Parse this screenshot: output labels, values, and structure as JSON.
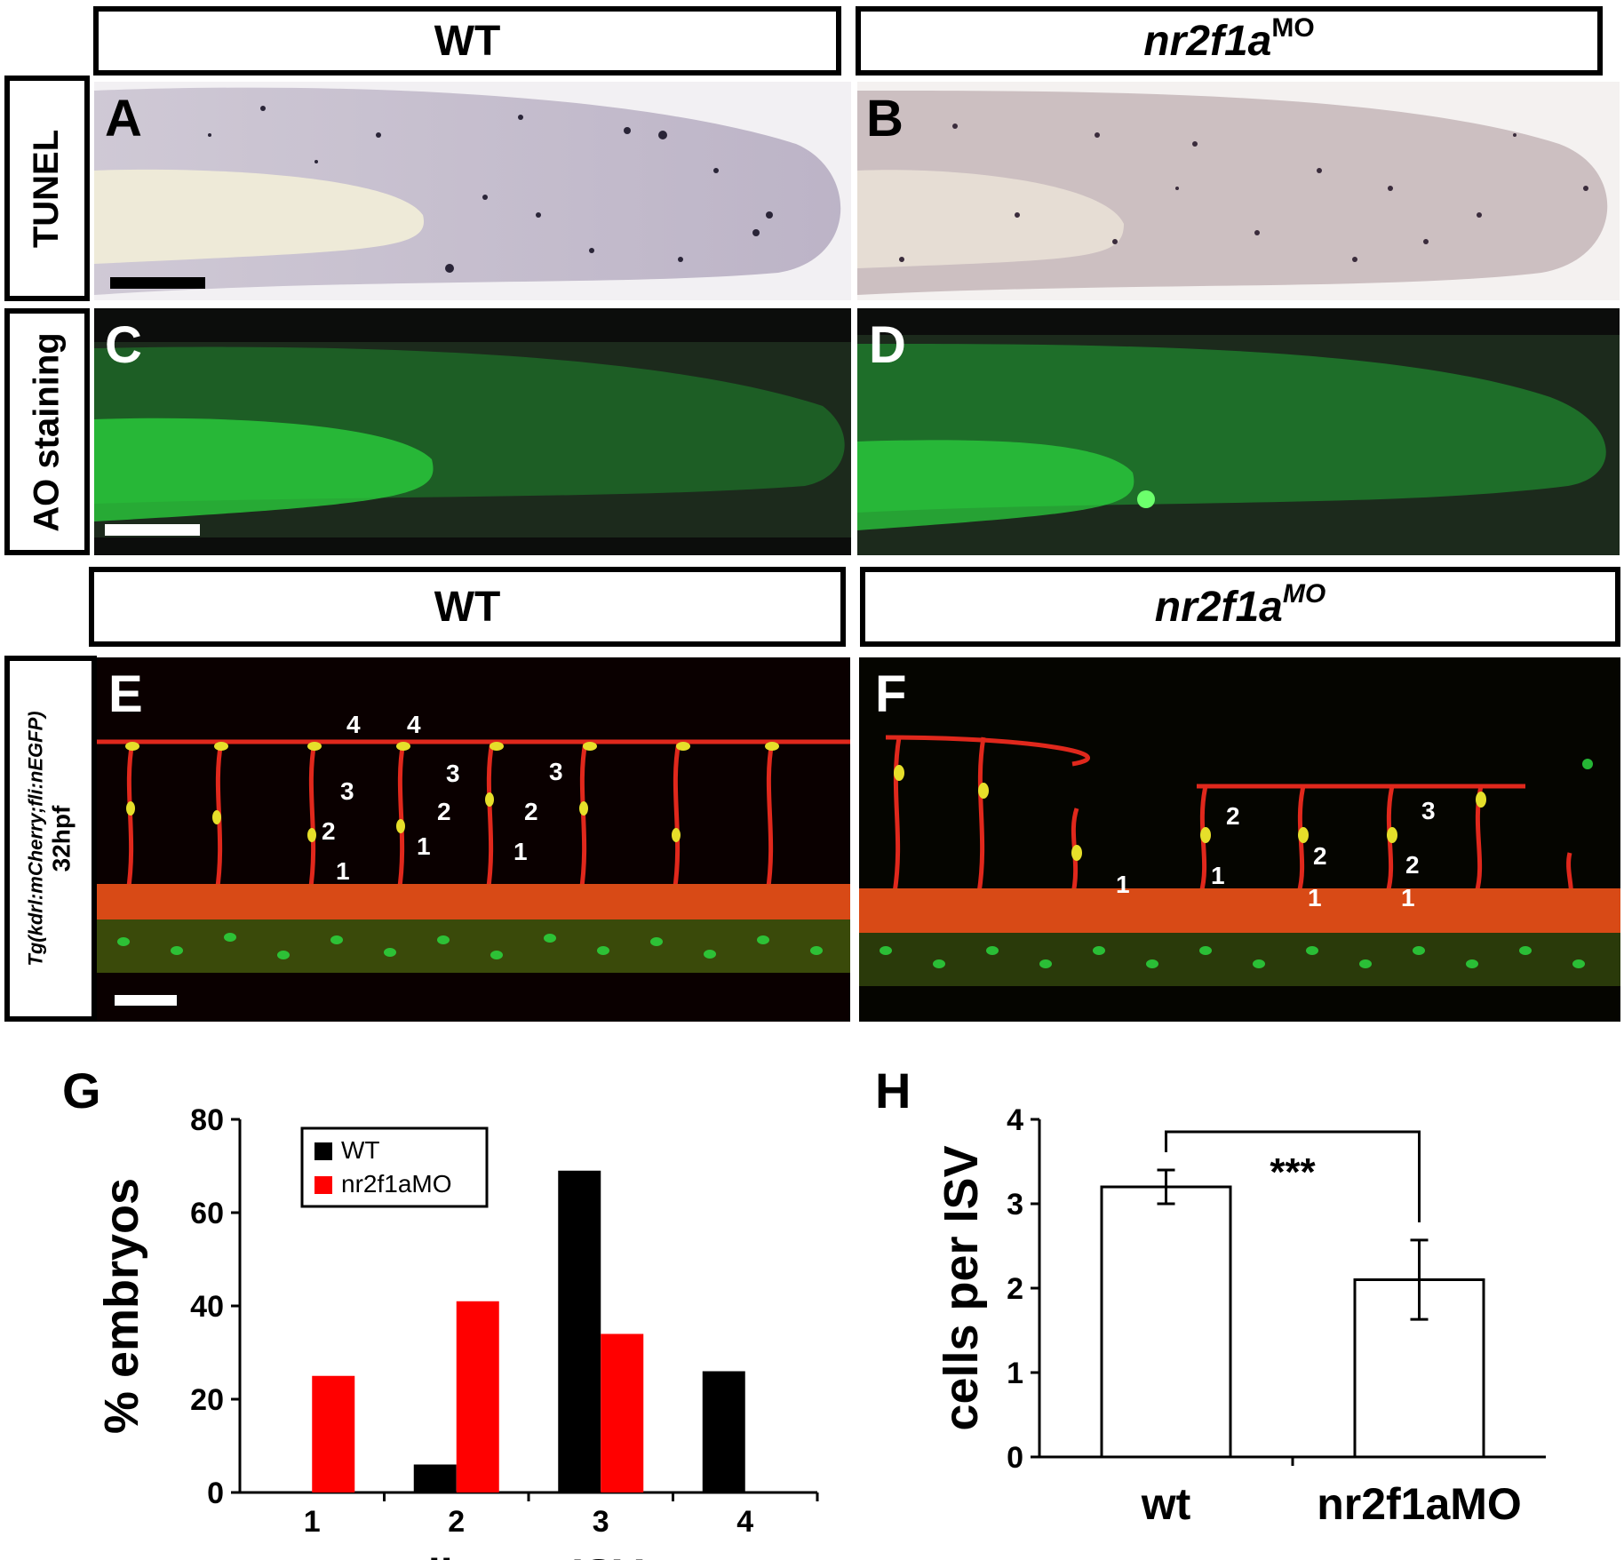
{
  "headers": {
    "top_left": "WT",
    "top_right_base": "nr2f1a",
    "top_right_sup": "MO",
    "mid_left": "WT",
    "mid_right_base": "nr2f1a",
    "mid_right_sup": "MO"
  },
  "row_labels": {
    "tunel": "TUNEL",
    "ao": "AO staining",
    "tg_line1": "Tg(kdrl:mCherry;fli:nEGFP)",
    "tg_line2": "32hpf"
  },
  "panel_letters": {
    "A": "A",
    "B": "B",
    "C": "C",
    "D": "D",
    "E": "E",
    "F": "F",
    "G": "G",
    "H": "H"
  },
  "colors": {
    "tunel_bg": "#e6e2ea",
    "ao_green": "#2bd63e",
    "vessel_red": "#e0281c",
    "nucleus_yellow": "#e6df2a",
    "wt_bar": "#000000",
    "mo_bar": "#ff0000"
  },
  "chart_data": [
    {
      "type": "bar",
      "panel": "G",
      "categories": [
        "1",
        "2",
        "3",
        "4"
      ],
      "series": [
        {
          "name": "WT",
          "color": "#000000",
          "values": [
            0,
            6,
            69,
            26
          ]
        },
        {
          "name": "nr2f1aMO",
          "color": "#ff0000",
          "values": [
            25,
            41,
            34,
            0
          ]
        }
      ],
      "xlabel": "cells per ISV",
      "ylabel": "% embryos",
      "ylim": [
        0,
        80
      ],
      "yticks": [
        "0",
        "20",
        "40",
        "60",
        "80"
      ],
      "legend": "top-left",
      "grid": false
    },
    {
      "type": "bar",
      "panel": "H",
      "categories": [
        "wt",
        "nr2f1aMO"
      ],
      "values": [
        3.2,
        2.1
      ],
      "errors": [
        0.2,
        0.47
      ],
      "xlabel": "",
      "ylabel": "cells per ISV",
      "ylim": [
        0,
        4
      ],
      "yticks": [
        "0",
        "1",
        "2",
        "3",
        "4"
      ],
      "significance": "***",
      "grid": false
    }
  ]
}
